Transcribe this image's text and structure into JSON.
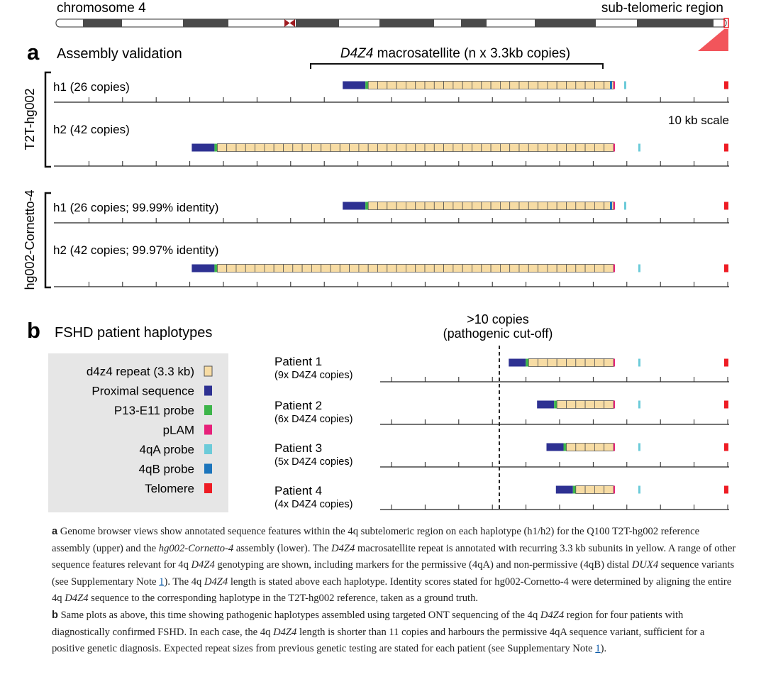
{
  "colors": {
    "repeat_fill": "#f7dca4",
    "repeat_stroke": "#555555",
    "proximal": "#2e3192",
    "p13": "#3db54a",
    "plam": "#e7217a",
    "qa": "#6ccbd9",
    "qb": "#1c75bc",
    "telomere": "#ee1c24",
    "legend_bg": "#e6e6e6"
  },
  "ideogram": {
    "left_label": "chromosome 4",
    "right_label": "sub-telomeric region"
  },
  "panel_a": {
    "letter": "a",
    "title": "Assembly validation",
    "bracket_label_italic": "D4Z4",
    "bracket_label_rest": " macrosatellite (n x 3.3kb copies)",
    "scale_label": "10 kb scale",
    "group1": "T2T-hg002",
    "group2": "hg002-Cornetto-4",
    "tracks": [
      {
        "label": "h1 (26 copies)",
        "copies": 26
      },
      {
        "label": "h2 (42 copies)",
        "copies": 42
      },
      {
        "label": "h1 (26 copies; 99.99% identity)",
        "copies": 26
      },
      {
        "label": "h2 (42 copies; 99.97% identity)",
        "copies": 42
      }
    ]
  },
  "panel_b": {
    "letter": "b",
    "title": "FSHD patient haplotypes",
    "cutoff_line1": ">10 copies",
    "cutoff_line2": "(pathogenic cut-off)",
    "patients": [
      {
        "name": "Patient 1",
        "note": "(9x D4Z4 copies)",
        "copies": 9
      },
      {
        "name": "Patient 2",
        "note": "(6x D4Z4 copies)",
        "copies": 6
      },
      {
        "name": "Patient 3",
        "note": "(5x D4Z4 copies)",
        "copies": 5
      },
      {
        "name": "Patient 4",
        "note": "(4x D4Z4 copies)",
        "copies": 4
      }
    ],
    "legend": [
      {
        "label": "d4z4 repeat (3.3 kb)",
        "key": "repeat"
      },
      {
        "label": "Proximal sequence",
        "key": "proximal"
      },
      {
        "label": "P13-E11 probe",
        "key": "p13"
      },
      {
        "label": "pLAM",
        "key": "plam"
      },
      {
        "label": "4qA probe",
        "key": "qa"
      },
      {
        "label": "4qB probe",
        "key": "qb"
      },
      {
        "label": "Telomere",
        "key": "telomere"
      }
    ]
  },
  "caption": {
    "a_letter": "a",
    "a1": " Genome browser views show annotated sequence features within the 4q subtelomeric region on each haplotype (h1/h2) for the Q100 T2T-hg002 reference assembly (upper) and the ",
    "a1_i": "hg002-Cornetto-4",
    "a2": " assembly (lower). The ",
    "a2_i": "D4Z4",
    "a3": " macrosatellite repeat is annotated with recurring 3.3 kb subunits in yellow. A range of other sequence features relevant for 4q ",
    "a3_i": "D4Z4",
    "a4": " genotyping are shown, including markers for the permissive (4qA) and non-permissive (4qB) distal ",
    "a4_i": "DUX4",
    "a5": " sequence variants (see Supplementary Note ",
    "a5_ref": "1",
    "a6": "). The 4q ",
    "a6_i": "D4Z4",
    "a7": " length is stated above each haplotype. Identity scores stated for hg002-Cornetto-4 were determined by aligning the entire 4q ",
    "a7_i": "D4Z4",
    "a8": " sequence to the corresponding haplotype in the T2T-hg002 reference, taken as a ground truth.",
    "b_letter": "b",
    "b1": " Same plots as above, this time showing pathogenic haplotypes assembled using targeted ONT sequencing of the 4q ",
    "b1_i": "D4Z4",
    "b2": " region for four patients with diagnostically confirmed FSHD. In each case, the 4q ",
    "b2_i": "D4Z4",
    "b3": " length is shorter than 11 copies and harbours the permissive 4qA sequence variant, sufficient for a positive genetic diagnosis. Expected repeat sizes from previous genetic testing are stated for each patient (see Supplementary Note ",
    "b3_ref": "1",
    "b4": ")."
  }
}
